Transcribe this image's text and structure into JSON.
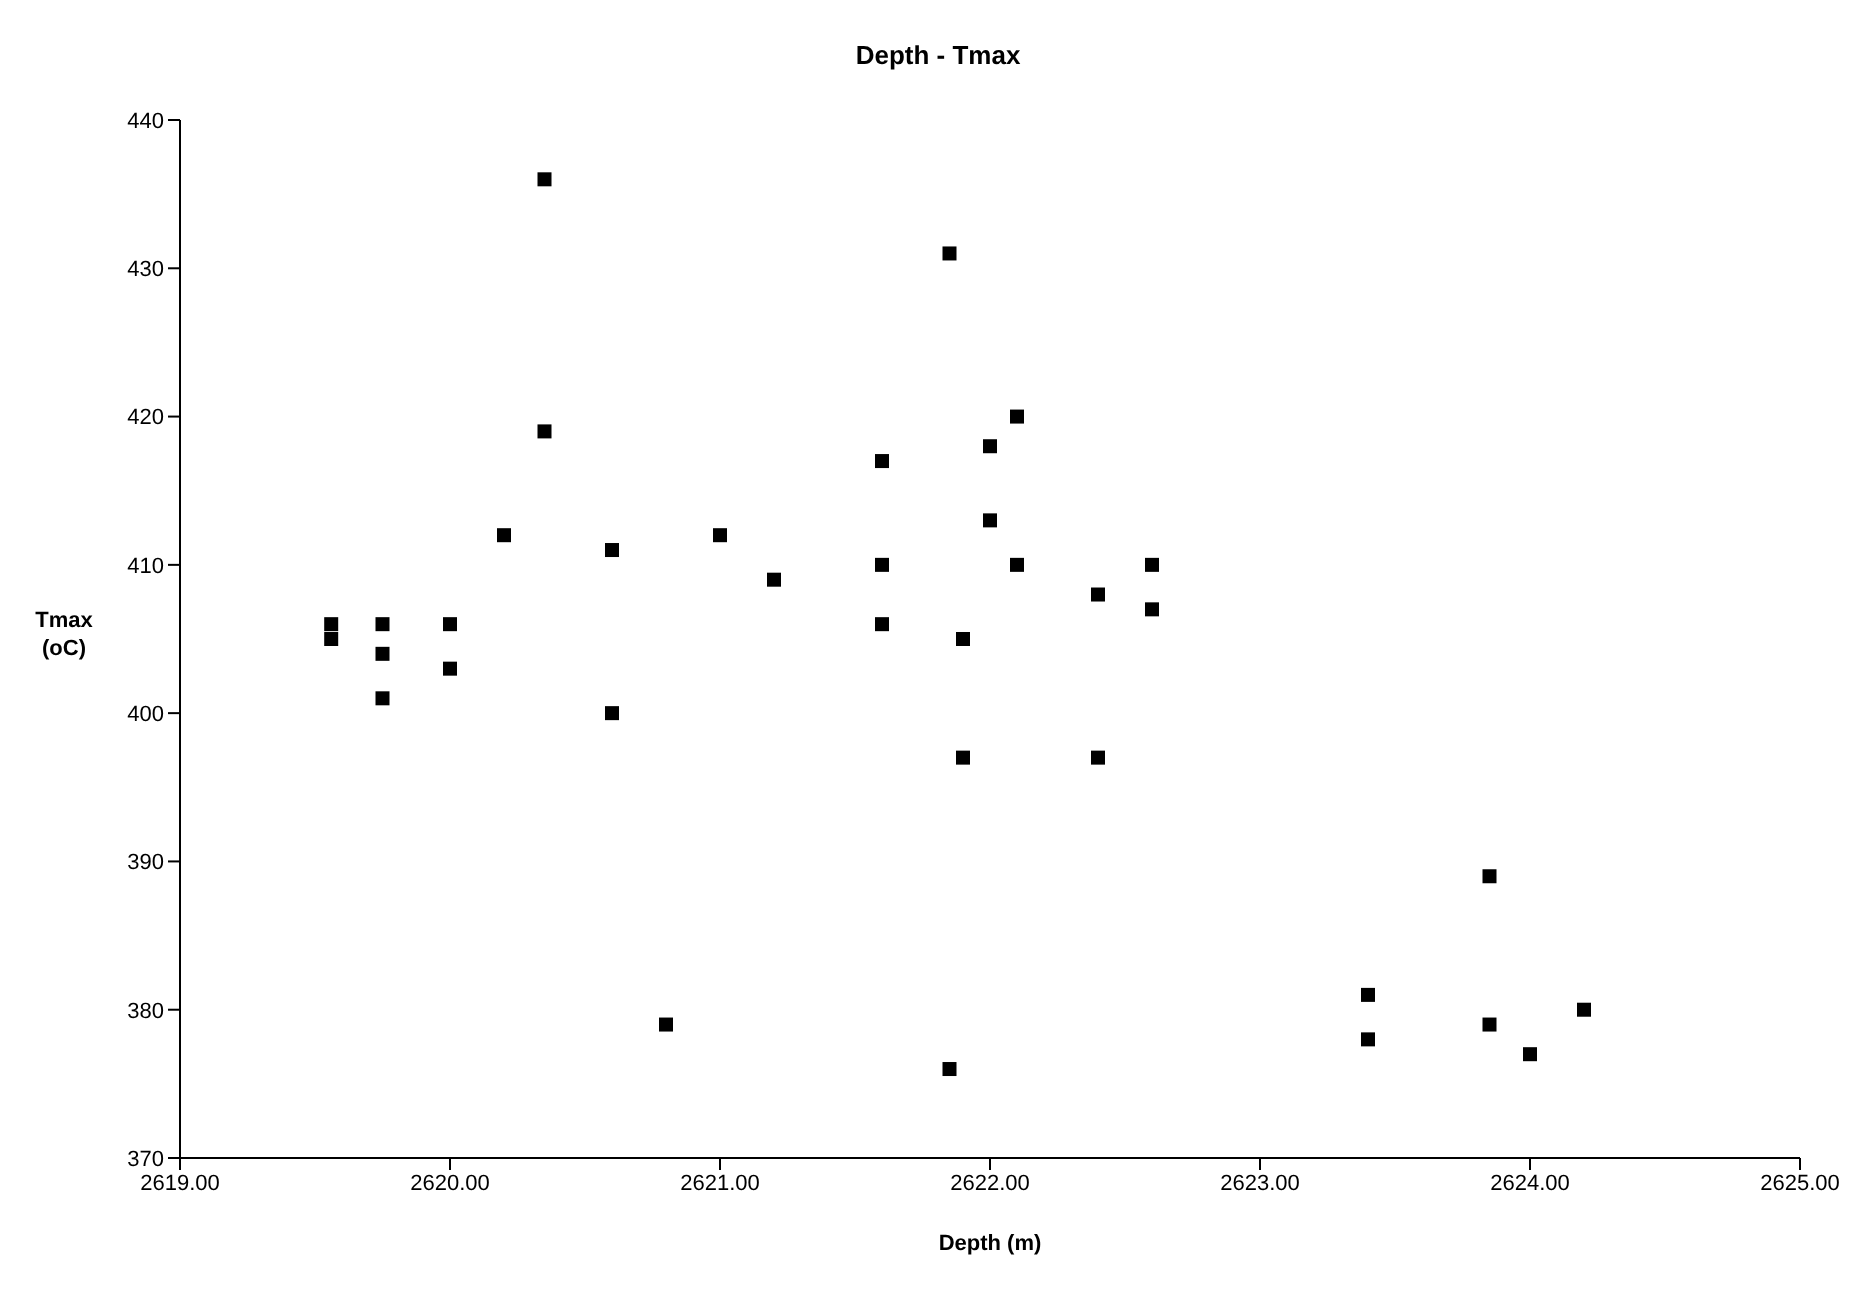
{
  "chart_data": {
    "type": "scatter",
    "title": "Depth - Tmax",
    "xlabel": "Depth (m)",
    "ylabel": "Tmax\n(oC)",
    "marker": "square",
    "grid": false,
    "legend": false,
    "xlim": [
      2619,
      2625
    ],
    "xticks": [
      {
        "value": 2619,
        "label": "2619.00"
      },
      {
        "value": 2620,
        "label": "2620.00"
      },
      {
        "value": 2621,
        "label": "2621.00"
      },
      {
        "value": 2622,
        "label": "2622.00"
      },
      {
        "value": 2623,
        "label": "2623.00"
      },
      {
        "value": 2624,
        "label": "2624.00"
      },
      {
        "value": 2625,
        "label": "2625.00"
      }
    ],
    "ylim": [
      370,
      440
    ],
    "yticks": [
      370,
      380,
      390,
      400,
      410,
      420,
      430,
      440
    ],
    "series": [
      {
        "color": "#000000",
        "x": [
          2619.56,
          2619.56,
          2619.75,
          2619.75,
          2619.75,
          2620.0,
          2620.0,
          2620.2,
          2620.35,
          2620.35,
          2620.6,
          2620.6,
          2620.8,
          2621.0,
          2621.2,
          2621.6,
          2621.6,
          2621.6,
          2621.85,
          2621.85,
          2621.9,
          2621.9,
          2622.0,
          2622.0,
          2622.1,
          2622.1,
          2622.4,
          2622.4,
          2622.6,
          2622.6,
          2623.4,
          2623.4,
          2623.85,
          2623.85,
          2624.0,
          2624.2
        ],
        "values": [
          406,
          405,
          406,
          404,
          401,
          406,
          403,
          412,
          436,
          419,
          411,
          400,
          379,
          412,
          409,
          417,
          410,
          406,
          431,
          376,
          405,
          397,
          418,
          413,
          420,
          410,
          408,
          397,
          410,
          407,
          381,
          378,
          389,
          379,
          377,
          380
        ]
      }
    ]
  }
}
